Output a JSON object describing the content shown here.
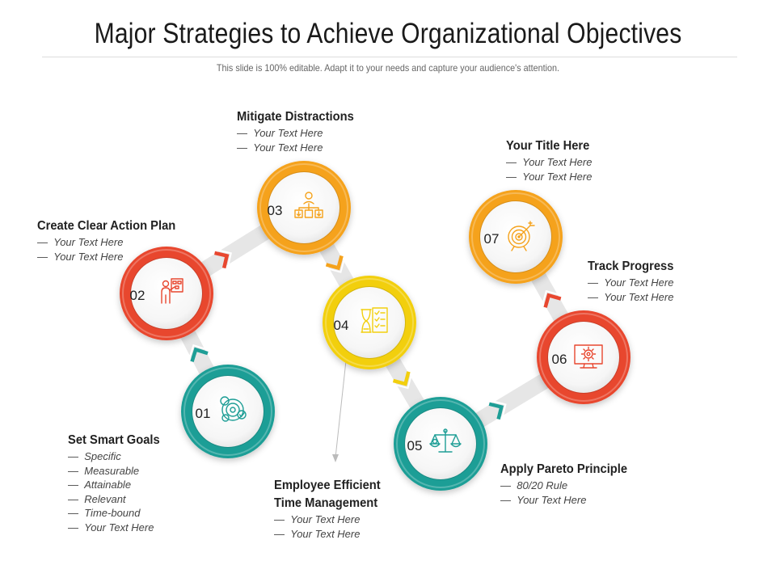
{
  "header": {
    "title": "Major Strategies to Achieve Organizational Objectives",
    "subtitle": "This slide is 100% editable. Adapt it to your needs and capture your audience's attention."
  },
  "colors": {
    "teal": "#1e9e96",
    "red": "#e8472f",
    "orange": "#f5a21b",
    "yellow": "#f2cf0e",
    "arrow": "#e6e6e6",
    "pointer": "#bbbbbb"
  },
  "steps": [
    {
      "number": "01",
      "color": "teal",
      "icon": "target-cluster-icon",
      "heading": [
        "Set Smart Goals"
      ],
      "lines": [
        "Specific",
        "Measurable",
        "Attainable",
        "Relevant",
        "Time-bound",
        "Your Text Here"
      ]
    },
    {
      "number": "02",
      "color": "red",
      "icon": "presenter-board-icon",
      "heading": [
        "Create Clear Action Plan"
      ],
      "lines": [
        "Your Text Here",
        "Your Text Here"
      ]
    },
    {
      "number": "03",
      "color": "orange",
      "icon": "org-chart-icon",
      "heading": [
        "Mitigate Distractions"
      ],
      "lines": [
        "Your Text Here",
        "Your Text Here"
      ]
    },
    {
      "number": "04",
      "color": "yellow",
      "icon": "hourglass-checklist-icon",
      "heading": [
        "Employee Efficient",
        "Time Management"
      ],
      "lines": [
        "Your Text Here",
        "Your Text Here"
      ]
    },
    {
      "number": "05",
      "color": "teal",
      "icon": "balance-scale-icon",
      "heading": [
        "Apply Pareto Principle"
      ],
      "lines": [
        "80/20 Rule",
        "Your Text Here"
      ]
    },
    {
      "number": "06",
      "color": "red",
      "icon": "monitor-gear-icon",
      "heading": [
        "Track Progress"
      ],
      "lines": [
        "Your Text Here",
        "Your Text Here"
      ]
    },
    {
      "number": "07",
      "color": "orange",
      "icon": "target-arrow-icon",
      "heading": [
        "Your Title Here"
      ],
      "lines": [
        "Your Text Here",
        "Your Text Here"
      ]
    }
  ]
}
